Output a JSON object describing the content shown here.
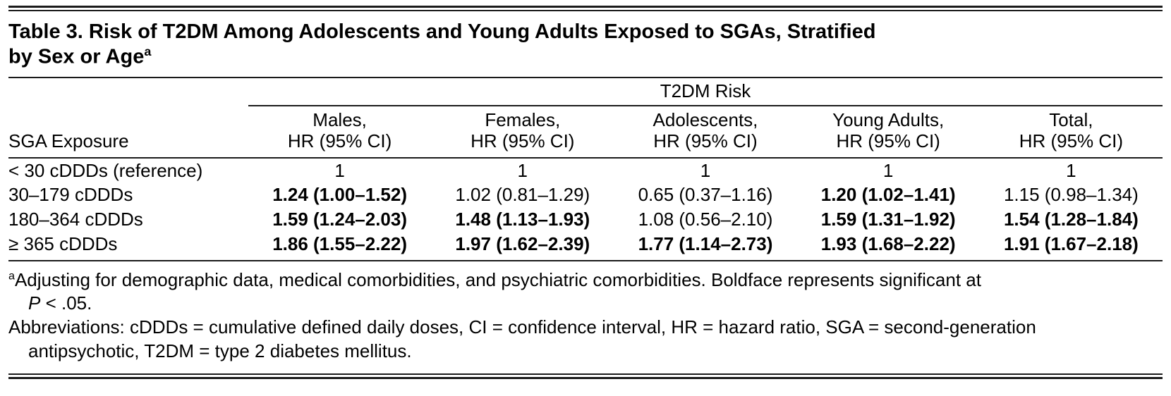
{
  "title": {
    "line1": "Table 3. Risk of T2DM Among Adolescents and Young Adults Exposed to SGAs, Stratified",
    "line2": "by Sex or Age",
    "sup": "a"
  },
  "table": {
    "spanner": "T2DM Risk",
    "row_header": "SGA Exposure",
    "columns": [
      {
        "line1": "Males,",
        "line2": "HR (95% CI)"
      },
      {
        "line1": "Females,",
        "line2": "HR (95% CI)"
      },
      {
        "line1": "Adolescents,",
        "line2": "HR (95% CI)"
      },
      {
        "line1": "Young Adults,",
        "line2": "HR (95% CI)"
      },
      {
        "line1": "Total,",
        "line2": "HR (95% CI)"
      }
    ],
    "rows": [
      {
        "label": "< 30 cDDDs (reference)",
        "cells": [
          {
            "text": "1",
            "bold": false
          },
          {
            "text": "1",
            "bold": false
          },
          {
            "text": "1",
            "bold": false
          },
          {
            "text": "1",
            "bold": false
          },
          {
            "text": "1",
            "bold": false
          }
        ]
      },
      {
        "label": "30–179 cDDDs",
        "cells": [
          {
            "text": "1.24 (1.00–1.52)",
            "bold": true
          },
          {
            "text": "1.02 (0.81–1.29)",
            "bold": false
          },
          {
            "text": "0.65 (0.37–1.16)",
            "bold": false
          },
          {
            "text": "1.20 (1.02–1.41)",
            "bold": true
          },
          {
            "text": "1.15 (0.98–1.34)",
            "bold": false
          }
        ]
      },
      {
        "label": "180–364 cDDDs",
        "cells": [
          {
            "text": "1.59 (1.24–2.03)",
            "bold": true
          },
          {
            "text": "1.48 (1.13–1.93)",
            "bold": true
          },
          {
            "text": "1.08 (0.56–2.10)",
            "bold": false
          },
          {
            "text": "1.59 (1.31–1.92)",
            "bold": true
          },
          {
            "text": "1.54 (1.28–1.84)",
            "bold": true
          }
        ]
      },
      {
        "label": "≥ 365 cDDDs",
        "cells": [
          {
            "text": "1.86 (1.55–2.22)",
            "bold": true
          },
          {
            "text": "1.97 (1.62–2.39)",
            "bold": true
          },
          {
            "text": "1.77 (1.14–2.73)",
            "bold": true
          },
          {
            "text": "1.93 (1.68–2.22)",
            "bold": true
          },
          {
            "text": "1.91 (1.67–2.18)",
            "bold": true
          }
        ]
      }
    ]
  },
  "footnotes": {
    "a": {
      "sup": "a",
      "line1": "Adjusting for demographic data, medical comorbidities, and psychiatric comorbidities. Boldface represents significant at",
      "line2_italic": "P",
      "line2_rest": " < .05."
    },
    "abbrev": {
      "line1": "Abbreviations: cDDDs = cumulative defined daily doses, CI = confidence interval, HR = hazard ratio, SGA = second-generation",
      "line2": "antipsychotic, T2DM = type 2 diabetes mellitus."
    }
  },
  "colors": {
    "text": "#000000",
    "background": "#ffffff",
    "rule": "#1a1a1a"
  }
}
